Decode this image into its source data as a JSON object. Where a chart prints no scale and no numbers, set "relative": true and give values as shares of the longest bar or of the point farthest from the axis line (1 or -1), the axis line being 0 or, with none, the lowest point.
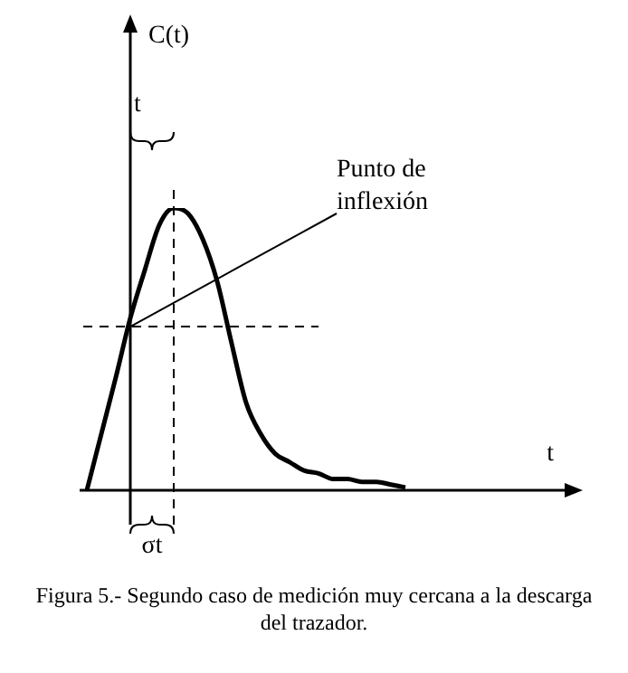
{
  "chart_data": {
    "type": "line",
    "relative": true,
    "categories": [
      null,
      null,
      null,
      null,
      null,
      null,
      null,
      null,
      null,
      null,
      null,
      null,
      null,
      null,
      null,
      null,
      null,
      null,
      null,
      null,
      null,
      null,
      null
    ],
    "series": [
      {
        "color": "#000000",
        "values": [
          0,
          0.2,
          0.4,
          0.61,
          0.78,
          0.94,
          1,
          0.98,
          0.89,
          0.74,
          0.52,
          0.31,
          0.2,
          0.13,
          0.1,
          0.07,
          0.06,
          0.04,
          0.04,
          0.03,
          0.03,
          0.02,
          0.01
        ]
      }
    ],
    "ref_lines": [
      {
        "axis": "y",
        "value": 0.58,
        "line_style": "dashed",
        "color": "#000000"
      }
    ],
    "annotations": [
      "t",
      "Punto de inflexión",
      "σt",
      "Figura 5.- Segundo caso de medición muy cercana a la descarga del trazador.",
      "C(t)",
      "t"
    ],
    "legend": false,
    "marker": "none",
    "line_style": "solid"
  }
}
